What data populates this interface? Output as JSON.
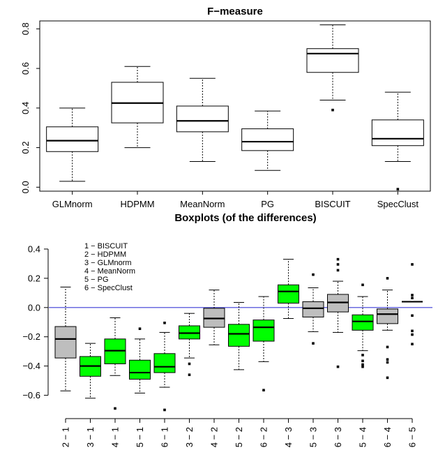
{
  "chart_data": [
    {
      "type": "boxplot",
      "title": "F−measure",
      "ylim": [
        -0.02,
        0.84
      ],
      "yticks": [
        0.0,
        0.2,
        0.4,
        0.6,
        0.8
      ],
      "ytick_labels": [
        "0.0",
        "0.2",
        "0.4",
        "0.6",
        "0.8"
      ],
      "categories": [
        "GLMnorm",
        "HDPMM",
        "MeanNorm",
        "PG",
        "BISCUIT",
        "SpecClust"
      ],
      "boxes": [
        {
          "label": "GLMnorm",
          "whisker_low": 0.03,
          "q1": 0.18,
          "median": 0.235,
          "q3": 0.305,
          "whisker_high": 0.4,
          "outliers": [],
          "fill": "#ffffff"
        },
        {
          "label": "HDPMM",
          "whisker_low": 0.2,
          "q1": 0.325,
          "median": 0.425,
          "q3": 0.53,
          "whisker_high": 0.61,
          "outliers": [],
          "fill": "#ffffff"
        },
        {
          "label": "MeanNorm",
          "whisker_low": 0.13,
          "q1": 0.28,
          "median": 0.335,
          "q3": 0.41,
          "whisker_high": 0.55,
          "outliers": [],
          "fill": "#ffffff"
        },
        {
          "label": "PG",
          "whisker_low": 0.085,
          "q1": 0.185,
          "median": 0.23,
          "q3": 0.295,
          "whisker_high": 0.385,
          "outliers": [],
          "fill": "#ffffff"
        },
        {
          "label": "BISCUIT",
          "whisker_low": 0.44,
          "q1": 0.58,
          "median": 0.675,
          "q3": 0.7,
          "whisker_high": 0.82,
          "outliers": [
            0.39
          ],
          "fill": "#ffffff"
        },
        {
          "label": "SpecClust",
          "whisker_low": 0.13,
          "q1": 0.21,
          "median": 0.245,
          "q3": 0.34,
          "whisker_high": 0.48,
          "outliers": [
            -0.01
          ],
          "fill": "#ffffff"
        }
      ]
    },
    {
      "type": "boxplot",
      "title": "Boxplots (of the differences)",
      "ylim": [
        -0.75,
        0.5
      ],
      "yticks": [
        -0.6,
        -0.4,
        -0.2,
        0.0,
        0.2,
        0.4
      ],
      "ytick_labels": [
        "−0.6",
        "−0.4",
        "−0.2",
        "0.0",
        "0.2",
        "0.4"
      ],
      "reference_line": {
        "y": 0.0,
        "color": "#3b3bd6"
      },
      "legend": [
        "1 − BISCUIT",
        "2 − HDPMM",
        "3 − GLMnorm",
        "4 − MeanNorm",
        "5 − PG",
        "6 − SpecClust"
      ],
      "categories": [
        "2 − 1",
        "3 − 1",
        "4 − 1",
        "5 − 1",
        "6 − 1",
        "3 − 2",
        "4 − 2",
        "5 − 2",
        "6 − 2",
        "4 − 3",
        "5 − 3",
        "6 − 3",
        "5 − 4",
        "6 − 4",
        "6 − 5"
      ],
      "boxes": [
        {
          "label": "2 − 1",
          "whisker_low": -0.57,
          "q1": -0.345,
          "median": -0.215,
          "q3": -0.13,
          "whisker_high": 0.14,
          "outliers": [],
          "fill": "#bebebe"
        },
        {
          "label": "3 − 1",
          "whisker_low": -0.62,
          "q1": -0.47,
          "median": -0.4,
          "q3": -0.335,
          "whisker_high": -0.245,
          "outliers": [],
          "fill": "#00ff00"
        },
        {
          "label": "4 − 1",
          "whisker_low": -0.465,
          "q1": -0.385,
          "median": -0.295,
          "q3": -0.215,
          "whisker_high": -0.07,
          "outliers": [
            -0.69
          ],
          "fill": "#00ff00"
        },
        {
          "label": "5 − 1",
          "whisker_low": -0.585,
          "q1": -0.49,
          "median": -0.445,
          "q3": -0.36,
          "whisker_high": -0.215,
          "outliers": [
            -0.145
          ],
          "fill": "#00ff00"
        },
        {
          "label": "6 − 1",
          "whisker_low": -0.545,
          "q1": -0.445,
          "median": -0.405,
          "q3": -0.315,
          "whisker_high": -0.17,
          "outliers": [
            -0.105,
            -0.7
          ],
          "fill": "#00ff00"
        },
        {
          "label": "3 − 2",
          "whisker_low": -0.345,
          "q1": -0.215,
          "median": -0.175,
          "q3": -0.125,
          "whisker_high": -0.04,
          "outliers": [
            -0.385,
            -0.46
          ],
          "fill": "#00ff00"
        },
        {
          "label": "4 − 2",
          "whisker_low": -0.255,
          "q1": -0.135,
          "median": -0.075,
          "q3": -0.005,
          "whisker_high": 0.12,
          "outliers": [],
          "fill": "#bebebe"
        },
        {
          "label": "5 − 2",
          "whisker_low": -0.425,
          "q1": -0.265,
          "median": -0.18,
          "q3": -0.115,
          "whisker_high": 0.035,
          "outliers": [],
          "fill": "#00ff00"
        },
        {
          "label": "6 − 2",
          "whisker_low": -0.37,
          "q1": -0.23,
          "median": -0.135,
          "q3": -0.085,
          "whisker_high": 0.075,
          "outliers": [
            -0.565
          ],
          "fill": "#00ff00"
        },
        {
          "label": "4 − 3",
          "whisker_low": -0.075,
          "q1": 0.03,
          "median": 0.11,
          "q3": 0.155,
          "whisker_high": 0.33,
          "outliers": [],
          "fill": "#00ff00"
        },
        {
          "label": "5 − 3",
          "whisker_low": -0.165,
          "q1": -0.065,
          "median": -0.005,
          "q3": 0.04,
          "whisker_high": 0.135,
          "outliers": [
            0.225,
            -0.245
          ],
          "fill": "#bebebe"
        },
        {
          "label": "6 − 3",
          "whisker_low": -0.17,
          "q1": -0.03,
          "median": 0.035,
          "q3": 0.09,
          "whisker_high": 0.18,
          "outliers": [
            0.33,
            0.295,
            0.255,
            -0.405
          ],
          "fill": "#bebebe"
        },
        {
          "label": "5 − 4",
          "whisker_low": -0.295,
          "q1": -0.155,
          "median": -0.095,
          "q3": -0.05,
          "whisker_high": 0.075,
          "outliers": [
            0.155,
            -0.325,
            -0.365,
            -0.39,
            -0.405
          ],
          "fill": "#00ff00"
        },
        {
          "label": "6 − 4",
          "whisker_low": -0.155,
          "q1": -0.11,
          "median": -0.045,
          "q3": -0.01,
          "whisker_high": 0.12,
          "outliers": [
            0.2,
            -0.27,
            -0.355,
            -0.375,
            -0.48
          ],
          "fill": "#bebebe"
        },
        {
          "label": "6 − 5",
          "whisker_low": 0.04,
          "q1": 0.04,
          "median": 0.04,
          "q3": 0.04,
          "whisker_high": 0.04,
          "outliers": [
            0.295,
            0.085,
            0.065,
            -0.055,
            -0.16,
            -0.185,
            -0.25
          ],
          "fill": "#bebebe"
        }
      ]
    }
  ]
}
